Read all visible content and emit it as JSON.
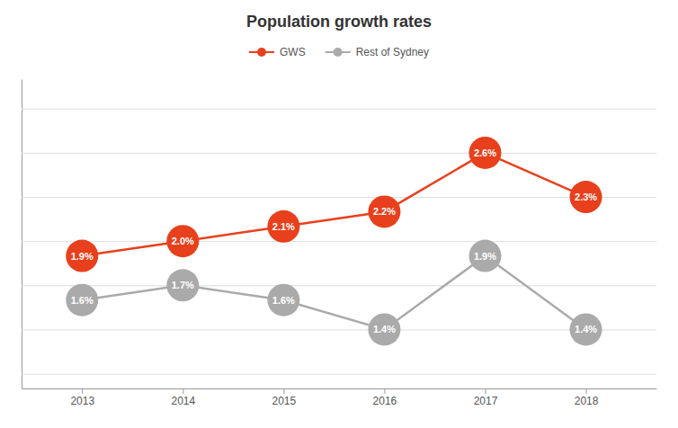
{
  "chart_data": {
    "type": "line",
    "title": "Population growth rates",
    "x": [
      2013,
      2014,
      2015,
      2016,
      2017,
      2018
    ],
    "series": [
      {
        "name": "GWS",
        "color": "#e8401c",
        "values": [
          1.9,
          2.0,
          2.1,
          2.2,
          2.6,
          2.3
        ],
        "value_labels": [
          "1.9%",
          "2.0%",
          "2.1%",
          "2.2%",
          "2.6%",
          "2.3%"
        ]
      },
      {
        "name": "Rest of Sydney",
        "color": "#aaaaaa",
        "values": [
          1.6,
          1.7,
          1.6,
          1.4,
          1.9,
          1.4
        ],
        "value_labels": [
          "1.6%",
          "1.7%",
          "1.6%",
          "1.4%",
          "1.9%",
          "1.4%"
        ]
      }
    ],
    "xlim": [
      2012.4,
      2018.7
    ],
    "xticks": [
      2013,
      2014,
      2015,
      2016,
      2017,
      2018
    ],
    "ylim": [
      1.0,
      3.1
    ],
    "yticks": [
      1.1,
      1.4,
      1.7,
      2.0,
      2.3,
      2.6,
      2.9
    ],
    "grid": true,
    "tick_labels": "x",
    "legend": "top",
    "marker": "circle",
    "data_labels": true
  }
}
